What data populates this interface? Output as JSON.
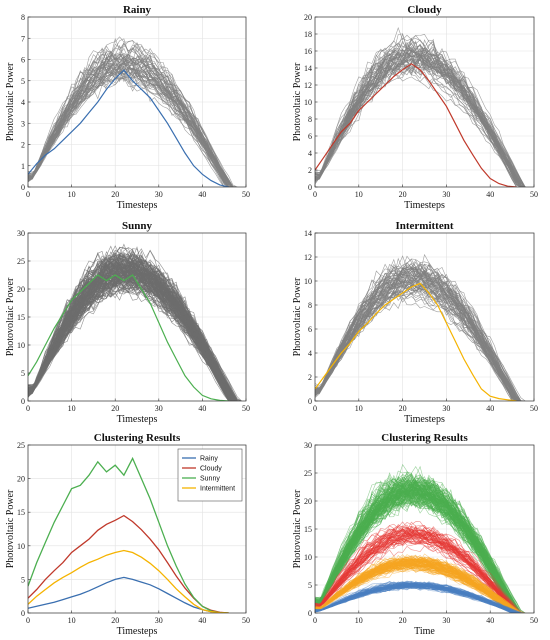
{
  "chart_data": [
    {
      "type": "line",
      "title": "Rainy",
      "xlabel": "Timesteps",
      "ylabel": "Photovoltaic Power",
      "xlim": [
        0,
        50
      ],
      "ylim": [
        0,
        8
      ],
      "xticks": [
        0,
        10,
        20,
        30,
        40,
        50
      ],
      "yticks": [
        0,
        1,
        2,
        3,
        4,
        5,
        6,
        7,
        8
      ],
      "grid": true,
      "background_series_color": "#808080",
      "background_series_count": 60,
      "background_series_end": 46,
      "highlight": {
        "color": "#3a6fb0",
        "x": [
          0,
          2,
          4,
          6,
          8,
          10,
          12,
          14,
          16,
          18,
          20,
          22,
          24,
          26,
          28,
          30,
          32,
          34,
          36,
          38,
          40,
          42,
          44,
          46
        ],
        "values": [
          0.6,
          1.1,
          1.5,
          1.8,
          2.2,
          2.6,
          3.0,
          3.5,
          4.0,
          4.6,
          5.1,
          5.5,
          5.0,
          4.6,
          4.2,
          3.6,
          3.0,
          2.3,
          1.6,
          1.0,
          0.6,
          0.3,
          0.1,
          0
        ]
      }
    },
    {
      "type": "line",
      "title": "Cloudy",
      "xlabel": "Timesteps",
      "ylabel": "Photovoltaic Power",
      "xlim": [
        0,
        50
      ],
      "ylim": [
        0,
        20
      ],
      "xticks": [
        0,
        10,
        20,
        30,
        40,
        50
      ],
      "yticks": [
        0,
        2,
        4,
        6,
        8,
        10,
        12,
        14,
        16,
        18,
        20
      ],
      "grid": true,
      "background_series_color": "#808080",
      "background_series_count": 60,
      "background_series_end": 47,
      "highlight": {
        "color": "#c0392b",
        "x": [
          0,
          2,
          4,
          6,
          8,
          10,
          12,
          14,
          16,
          18,
          20,
          22,
          24,
          26,
          28,
          30,
          32,
          34,
          36,
          38,
          40,
          42,
          44,
          46
        ],
        "values": [
          2.0,
          3.5,
          5.0,
          6.5,
          7.5,
          9.0,
          10.0,
          11.0,
          12.0,
          13.0,
          13.8,
          14.5,
          13.8,
          12.5,
          11.0,
          9.5,
          7.5,
          5.5,
          3.8,
          2.2,
          1.0,
          0.4,
          0.1,
          0
        ]
      }
    },
    {
      "type": "line",
      "title": "Sunny",
      "xlabel": "Timesteps",
      "ylabel": "Photovoltaic Power",
      "xlim": [
        0,
        50
      ],
      "ylim": [
        0,
        30
      ],
      "xticks": [
        0,
        10,
        20,
        30,
        40,
        50
      ],
      "yticks": [
        0,
        5,
        10,
        15,
        20,
        25,
        30
      ],
      "grid": true,
      "background_series_color": "#6e6e6e",
      "background_series_count": 160,
      "background_series_end": 47,
      "highlight": {
        "color": "#4caf50",
        "x": [
          0,
          2,
          4,
          6,
          8,
          10,
          12,
          14,
          16,
          18,
          20,
          22,
          24,
          26,
          28,
          30,
          32,
          34,
          36,
          38,
          40,
          42,
          44,
          46
        ],
        "values": [
          4.5,
          7.0,
          10.0,
          13.0,
          15.5,
          18.0,
          19.5,
          21.0,
          22.5,
          21.5,
          22.5,
          21.5,
          22.5,
          20.0,
          17.5,
          14.0,
          10.5,
          7.5,
          4.5,
          2.5,
          1.0,
          0.4,
          0.1,
          0
        ]
      }
    },
    {
      "type": "line",
      "title": "Intermittent",
      "xlabel": "Timesteps",
      "ylabel": "Photovoltaic Power",
      "xlim": [
        0,
        50
      ],
      "ylim": [
        0,
        14
      ],
      "xticks": [
        0,
        10,
        20,
        30,
        40,
        50
      ],
      "yticks": [
        0,
        2,
        4,
        6,
        8,
        10,
        12,
        14
      ],
      "grid": true,
      "background_series_color": "#808080",
      "background_series_count": 70,
      "background_series_end": 46,
      "highlight": {
        "color": "#f5b300",
        "x": [
          0,
          2,
          4,
          6,
          8,
          10,
          12,
          14,
          16,
          18,
          20,
          22,
          24,
          26,
          28,
          30,
          32,
          34,
          36,
          38,
          40,
          42,
          44,
          46
        ],
        "values": [
          1.0,
          2.0,
          3.0,
          4.0,
          4.8,
          5.8,
          6.5,
          7.3,
          8.0,
          8.5,
          9.0,
          9.5,
          9.8,
          9.0,
          8.0,
          6.5,
          5.0,
          3.5,
          2.2,
          1.0,
          0.4,
          0.2,
          0.1,
          0
        ]
      }
    },
    {
      "type": "line",
      "title": "Clustering Results",
      "xlabel": "Timesteps",
      "ylabel": "Photovoltaic Power",
      "xlim": [
        0,
        50
      ],
      "ylim": [
        0,
        25
      ],
      "xticks": [
        0,
        10,
        20,
        30,
        40,
        50
      ],
      "yticks": [
        0,
        5,
        10,
        15,
        20,
        25
      ],
      "grid": true,
      "legend_position": "top-right",
      "x": [
        0,
        2,
        4,
        6,
        8,
        10,
        12,
        14,
        16,
        18,
        20,
        22,
        24,
        26,
        28,
        30,
        32,
        34,
        36,
        38,
        40,
        42,
        44,
        46
      ],
      "series": [
        {
          "name": "Rainy",
          "color": "#3a6fb0",
          "values": [
            0.7,
            1.0,
            1.3,
            1.6,
            2.0,
            2.4,
            2.8,
            3.3,
            3.9,
            4.5,
            5.0,
            5.3,
            5.0,
            4.6,
            4.2,
            3.6,
            2.9,
            2.2,
            1.5,
            0.9,
            0.5,
            0.2,
            0.05,
            0
          ]
        },
        {
          "name": "Cloudy",
          "color": "#c0392b",
          "values": [
            2.2,
            3.5,
            5.0,
            6.3,
            7.5,
            9.0,
            10.0,
            11.0,
            12.3,
            13.2,
            13.8,
            14.5,
            13.6,
            12.4,
            11.0,
            9.4,
            7.5,
            5.5,
            3.7,
            2.2,
            1.0,
            0.4,
            0.1,
            0
          ]
        },
        {
          "name": "Sunny",
          "color": "#4caf50",
          "values": [
            4.0,
            7.5,
            10.5,
            13.5,
            16.0,
            18.5,
            19.0,
            20.5,
            22.5,
            21.0,
            22.0,
            20.5,
            23.0,
            20.0,
            17.0,
            13.5,
            10.0,
            7.0,
            4.3,
            2.3,
            1.0,
            0.3,
            0.05,
            0
          ]
        },
        {
          "name": "Intermittent",
          "color": "#f5b300",
          "values": [
            1.3,
            2.5,
            3.5,
            4.5,
            5.3,
            6.0,
            6.8,
            7.5,
            8.0,
            8.6,
            9.0,
            9.3,
            9.0,
            8.3,
            7.4,
            6.3,
            5.0,
            3.6,
            2.4,
            1.3,
            0.5,
            0.2,
            0.05,
            0
          ]
        }
      ]
    },
    {
      "type": "line",
      "title": "Clustering Results",
      "xlabel": "Time",
      "ylabel": "Photovoltaic Power",
      "xlim": [
        0,
        50
      ],
      "ylim": [
        0,
        30
      ],
      "xticks": [
        0,
        10,
        20,
        30,
        40,
        50
      ],
      "yticks": [
        0,
        5,
        10,
        15,
        20,
        25,
        30
      ],
      "grid": true,
      "series": [
        {
          "color": "#4caf50",
          "peak": 22,
          "count": 150
        },
        {
          "color": "#e53935",
          "peak": 14,
          "count": 60
        },
        {
          "color": "#f5a623",
          "peak": 9,
          "count": 110
        },
        {
          "color": "#4a7fc1",
          "peak": 5,
          "count": 80
        }
      ]
    }
  ]
}
